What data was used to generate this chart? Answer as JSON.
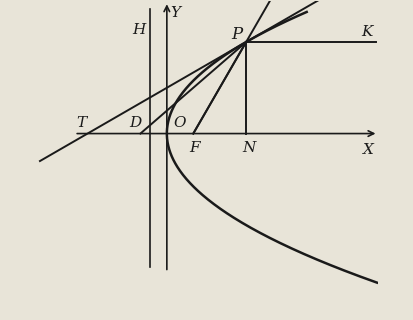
{
  "bg_color": "#e8e4d8",
  "axes_color": "#1a1a1a",
  "curve_color": "#1a1a1a",
  "line_color": "#1a1a1a",
  "font_color": "#1a1a1a",
  "p_param": 0.5,
  "xlim": [
    -2.5,
    4.0
  ],
  "ylim": [
    -3.5,
    2.5
  ],
  "figsize": [
    4.13,
    3.2
  ],
  "dpi": 100,
  "label_fs": 11
}
